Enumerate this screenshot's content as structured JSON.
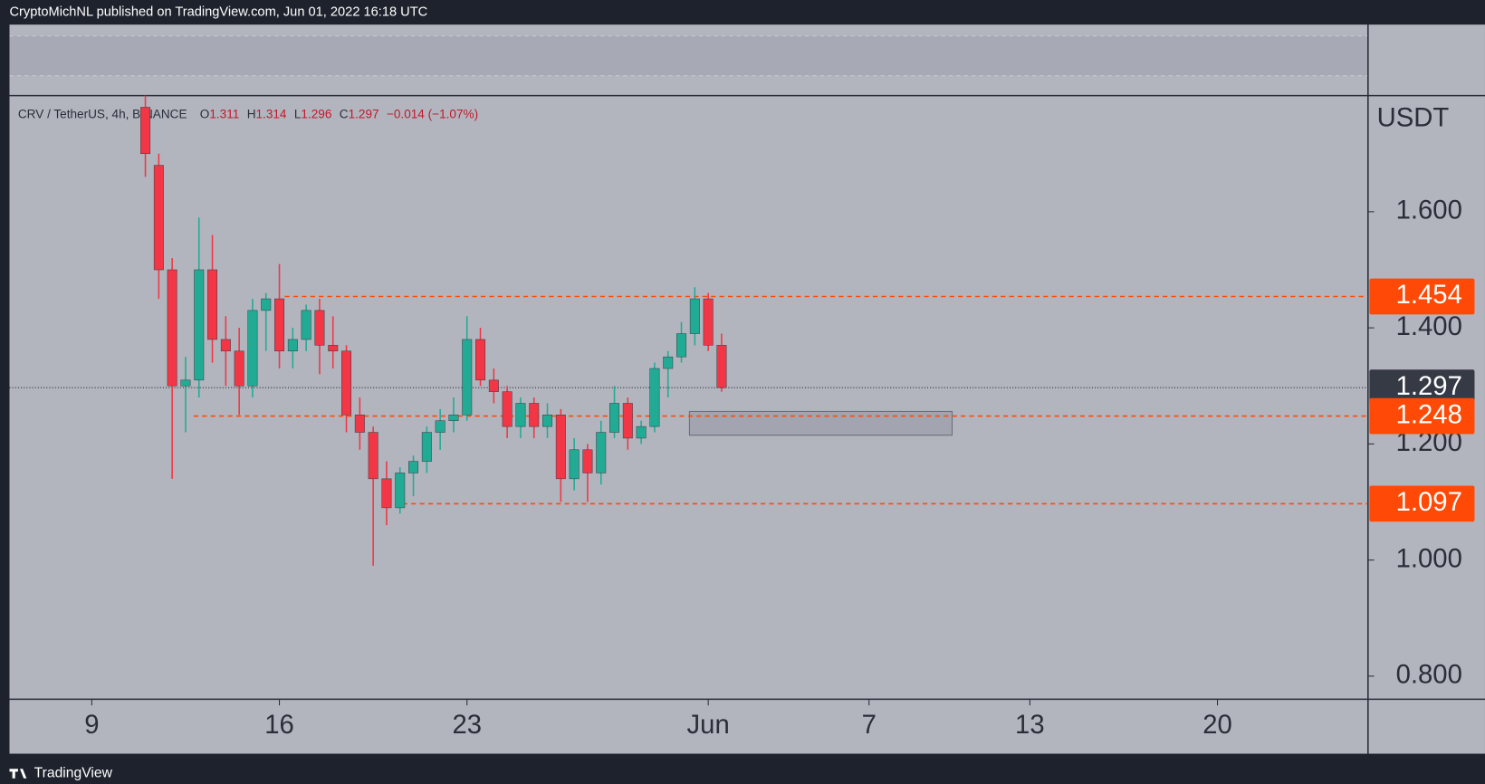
{
  "header": {
    "title": "CryptoMichNL published on TradingView.com, Jun 01, 2022 16:18 UTC"
  },
  "footer": {
    "brand": "TradingView"
  },
  "chart_data": {
    "type": "candlestick",
    "symbol": "CRV / TetherUS, 4h, BINANCE",
    "ohlc": [
      {
        "name": "O",
        "value": 1.311
      },
      {
        "name": "H",
        "value": 1.314
      },
      {
        "name": "L",
        "value": 1.296
      },
      {
        "name": "C",
        "value": 1.297
      }
    ],
    "change": "−0.014 (−1.07%)",
    "currency": "USDT",
    "up_color": "#22ab94",
    "down_color": "#f23645",
    "x": [
      11,
      11.5,
      12,
      12.5,
      13,
      13.5,
      14,
      14.5,
      15,
      15.5,
      16,
      16.5,
      17,
      17.5,
      18,
      18.5,
      19,
      19.5,
      20,
      20.5,
      21,
      21.5,
      22,
      22.5,
      23,
      23.5,
      24,
      24.5,
      25,
      25.5,
      26,
      26.5,
      27,
      27.5,
      28,
      28.5,
      29,
      29.5,
      30,
      30.5,
      31,
      31.5,
      32,
      32.5
    ],
    "open": [
      1.78,
      1.68,
      1.5,
      1.3,
      1.31,
      1.5,
      1.38,
      1.36,
      1.3,
      1.43,
      1.45,
      1.36,
      1.38,
      1.43,
      1.37,
      1.36,
      1.25,
      1.22,
      1.14,
      1.09,
      1.15,
      1.17,
      1.22,
      1.24,
      1.25,
      1.38,
      1.31,
      1.29,
      1.23,
      1.27,
      1.23,
      1.25,
      1.14,
      1.19,
      1.15,
      1.22,
      1.27,
      1.21,
      1.23,
      1.33,
      1.35,
      1.39,
      1.45,
      1.37
    ],
    "high": [
      1.8,
      1.7,
      1.52,
      1.35,
      1.59,
      1.56,
      1.42,
      1.4,
      1.45,
      1.46,
      1.51,
      1.4,
      1.44,
      1.45,
      1.42,
      1.37,
      1.28,
      1.23,
      1.17,
      1.16,
      1.18,
      1.23,
      1.26,
      1.28,
      1.42,
      1.4,
      1.33,
      1.3,
      1.28,
      1.28,
      1.27,
      1.26,
      1.21,
      1.2,
      1.24,
      1.3,
      1.28,
      1.24,
      1.34,
      1.36,
      1.41,
      1.47,
      1.46,
      1.39
    ],
    "low": [
      1.66,
      1.45,
      1.14,
      1.22,
      1.28,
      1.34,
      1.3,
      1.25,
      1.28,
      1.36,
      1.33,
      1.33,
      1.36,
      1.32,
      1.33,
      1.22,
      1.19,
      0.99,
      1.06,
      1.08,
      1.11,
      1.15,
      1.19,
      1.22,
      1.24,
      1.3,
      1.27,
      1.21,
      1.21,
      1.21,
      1.21,
      1.1,
      1.12,
      1.1,
      1.13,
      1.21,
      1.19,
      1.2,
      1.22,
      1.28,
      1.34,
      1.37,
      1.36,
      1.29
    ],
    "close": [
      1.7,
      1.5,
      1.3,
      1.31,
      1.5,
      1.38,
      1.36,
      1.3,
      1.43,
      1.45,
      1.36,
      1.38,
      1.43,
      1.37,
      1.36,
      1.25,
      1.22,
      1.14,
      1.09,
      1.15,
      1.17,
      1.22,
      1.24,
      1.25,
      1.38,
      1.31,
      1.29,
      1.23,
      1.27,
      1.23,
      1.25,
      1.14,
      1.19,
      1.15,
      1.22,
      1.27,
      1.21,
      1.23,
      1.33,
      1.35,
      1.39,
      1.45,
      1.37,
      1.297
    ],
    "xlim": [
      5.93,
      56.6
    ],
    "ylim": [
      0.761,
      1.8
    ],
    "xticks": [
      9,
      16,
      23,
      {
        "value": 32,
        "label": "Jun"
      },
      {
        "value": 38,
        "label": "7"
      },
      {
        "value": 44,
        "label": "13"
      },
      {
        "value": 51,
        "label": "20"
      }
    ],
    "yticks": [
      {
        "value": 0.8,
        "label": "0.800"
      },
      {
        "value": 1.0,
        "label": "1.000"
      },
      {
        "value": 1.2,
        "label": "1.200"
      },
      {
        "value": 1.4,
        "label": "1.400"
      },
      {
        "value": 1.6,
        "label": "1.600"
      }
    ],
    "levels": [
      {
        "value": 1.454,
        "x_start": 16.2,
        "color": "#ff4a07"
      },
      {
        "value": 1.248,
        "x_start": 12.8,
        "color": "#ff4a07"
      },
      {
        "value": 1.097,
        "x_start": 20.6,
        "color": "#ff4a07"
      }
    ],
    "last_price": 1.297,
    "zone": {
      "x": [
        31.3,
        41.1
      ],
      "y": [
        1.215,
        1.256
      ]
    }
  }
}
